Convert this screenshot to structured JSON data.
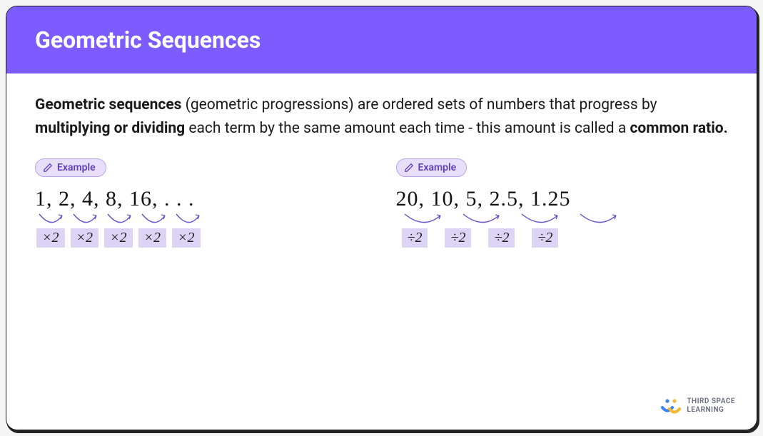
{
  "header": {
    "title": "Geometric Sequences"
  },
  "description": {
    "part1": "Geometric sequences",
    "part2": " (geometric progressions) are ordered sets of numbers that progress by ",
    "part3": "multiplying or dividing",
    "part4": " each term by the same amount each time - this amount is called a ",
    "part5": "common ratio.",
    "fontsize": 21,
    "text_color": "#1a1a1a"
  },
  "badge_label": "Example",
  "example1": {
    "sequence_text": "1,  2,  4,  8,  16, . . .",
    "ops": [
      "×2",
      "×2",
      "×2",
      "×2",
      "×2"
    ],
    "arrow_count": 5,
    "arrow_width": 40
  },
  "example2": {
    "sequence_text": "20,   10,   5,   2.5,   1.25",
    "ops": [
      "÷2",
      "÷2",
      "÷2",
      "÷2"
    ],
    "arrow_count": 4,
    "arrow_width": 58
  },
  "colors": {
    "header_bg": "#7c5cff",
    "header_text": "#ffffff",
    "card_bg": "#ffffff",
    "badge_bg": "#e7def9",
    "badge_border": "#b9a5ea",
    "badge_text": "#5a3fc0",
    "chip_bg": "#dcd3f5",
    "arrow_stroke": "#6b4fc7",
    "logo_blue": "#3b82f6",
    "logo_yellow": "#f5b82e",
    "logo_text": "#6b7280"
  },
  "logo": {
    "line1": "THIRD SPACE",
    "line2": "LEARNING"
  }
}
